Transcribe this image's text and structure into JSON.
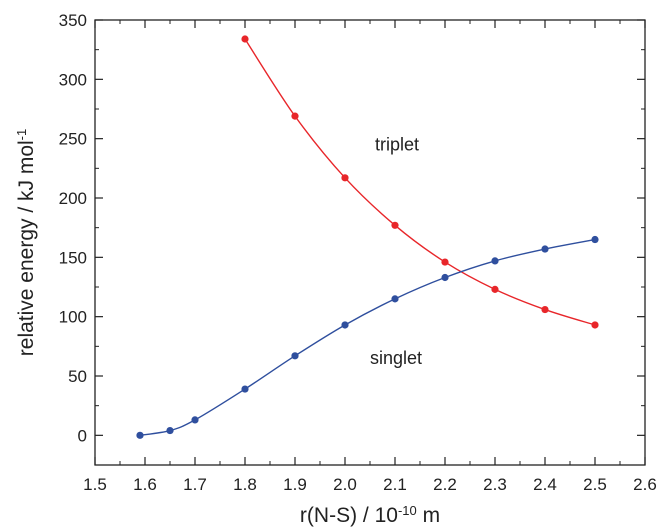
{
  "chart_data": {
    "type": "line",
    "title": "",
    "xlabel": "r(N-S) / 10",
    "xlabel_exp": "-10",
    "xlabel_suffix": " m",
    "ylabel": "relative energy / kJ mol",
    "ylabel_exp": "-1",
    "xlim": [
      1.5,
      2.6
    ],
    "ylim": [
      -25,
      350
    ],
    "xticks": [
      1.5,
      1.6,
      1.7,
      1.8,
      1.9,
      2.0,
      2.1,
      2.2,
      2.3,
      2.4,
      2.5,
      2.6
    ],
    "xtick_labels": [
      "1.5",
      "1.6",
      "1.7",
      "1.8",
      "1.9",
      "2.0",
      "2.1",
      "2.2",
      "2.3",
      "2.4",
      "2.5",
      "2.6"
    ],
    "yticks": [
      0,
      50,
      100,
      150,
      200,
      250,
      300,
      350
    ],
    "ytick_labels": [
      "0",
      "50",
      "100",
      "150",
      "200",
      "250",
      "300",
      "350"
    ],
    "grid": false,
    "series": [
      {
        "name": "triplet",
        "color": "#e8262a",
        "x": [
          1.8,
          1.9,
          2.0,
          2.1,
          2.2,
          2.3,
          2.4,
          2.5
        ],
        "y": [
          334,
          269,
          217,
          177,
          146,
          123,
          106,
          93
        ]
      },
      {
        "name": "singlet",
        "color": "#2f4f9e",
        "x": [
          1.59,
          1.65,
          1.7,
          1.8,
          1.9,
          2.0,
          2.1,
          2.2,
          2.3,
          2.4,
          2.5
        ],
        "y": [
          0,
          4,
          13,
          39,
          67,
          93,
          115,
          133,
          147,
          157,
          165
        ]
      }
    ],
    "annotations": [
      {
        "text": "triplet",
        "x": 2.06,
        "y": 240
      },
      {
        "text": "singlet",
        "x": 2.05,
        "y": 60
      }
    ]
  }
}
